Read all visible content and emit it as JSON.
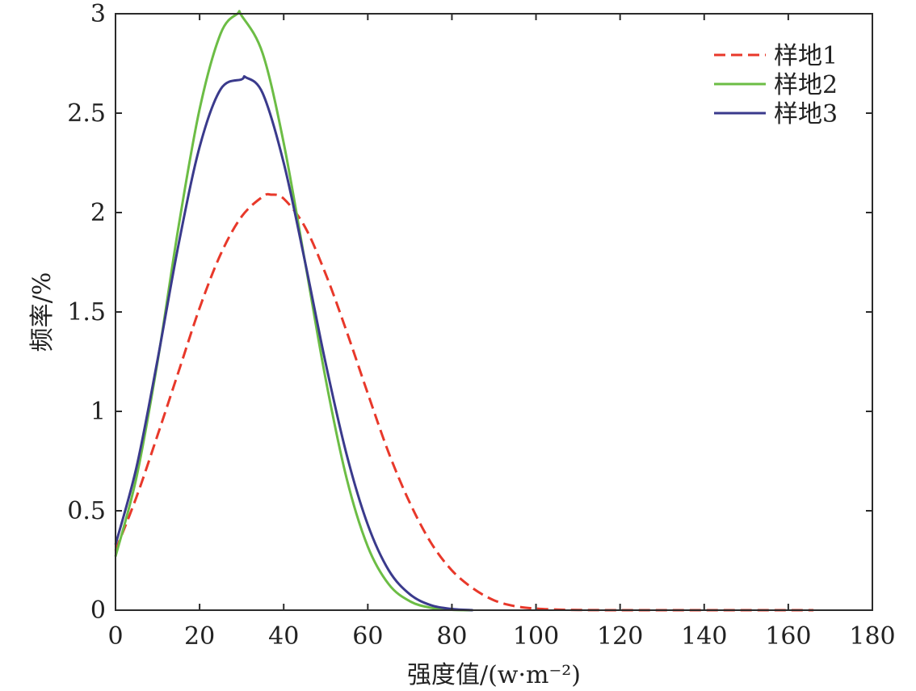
{
  "chart_data": {
    "type": "line",
    "xlabel": "强度值/(w·m⁻²)",
    "ylabel": "频率/%",
    "xlim": [
      0,
      180
    ],
    "ylim": [
      0,
      3
    ],
    "xticks": [
      0,
      20,
      40,
      60,
      80,
      100,
      120,
      140,
      160,
      180
    ],
    "yticks": [
      0,
      0.5,
      1,
      1.5,
      2,
      2.5,
      3
    ],
    "xtick_labels": [
      "0",
      "20",
      "40",
      "60",
      "80",
      "100",
      "120",
      "140",
      "160",
      "180"
    ],
    "ytick_labels": [
      "0",
      "0.5",
      "1",
      "1.5",
      "2",
      "2.5",
      "3"
    ],
    "grid": false,
    "legend_position": "top-right",
    "series": [
      {
        "name": "样地1",
        "color": "#e8382a",
        "style": "dashed",
        "x": [
          0,
          5,
          10,
          15,
          20,
          25,
          30,
          35,
          37,
          40,
          45,
          50,
          55,
          60,
          65,
          70,
          75,
          80,
          85,
          90,
          95,
          100,
          105,
          110,
          120,
          130,
          140,
          150,
          160,
          166
        ],
        "y": [
          0.3,
          0.57,
          0.88,
          1.2,
          1.52,
          1.79,
          1.98,
          2.08,
          2.09,
          2.07,
          1.93,
          1.69,
          1.4,
          1.09,
          0.79,
          0.54,
          0.34,
          0.2,
          0.11,
          0.05,
          0.02,
          0.008,
          0.003,
          0.001,
          0,
          0,
          0,
          0,
          0,
          0
        ]
      },
      {
        "name": "样地2",
        "color": "#6cbd45",
        "style": "solid",
        "x": [
          0,
          5,
          10,
          15,
          20,
          25,
          29,
          30,
          35,
          40,
          45,
          50,
          55,
          60,
          65,
          70,
          75,
          80,
          85
        ],
        "y": [
          0.27,
          0.67,
          1.25,
          1.93,
          2.52,
          2.9,
          3.0,
          2.99,
          2.8,
          2.35,
          1.76,
          1.16,
          0.66,
          0.32,
          0.13,
          0.045,
          0.012,
          0.002,
          0
        ]
      },
      {
        "name": "样地3",
        "color": "#3a3a8c",
        "style": "solid",
        "x": [
          0,
          5,
          10,
          15,
          20,
          25,
          30,
          31,
          35,
          40,
          45,
          50,
          55,
          60,
          65,
          70,
          75,
          80,
          85
        ],
        "y": [
          0.33,
          0.72,
          1.26,
          1.84,
          2.33,
          2.62,
          2.67,
          2.68,
          2.6,
          2.25,
          1.76,
          1.24,
          0.78,
          0.43,
          0.2,
          0.08,
          0.025,
          0.006,
          0
        ]
      }
    ]
  }
}
